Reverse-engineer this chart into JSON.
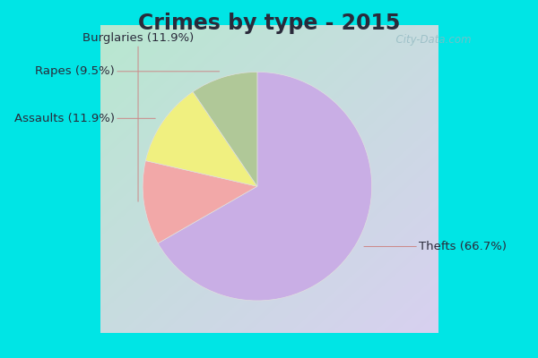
{
  "title": "Crimes by type - 2015",
  "slices": [
    {
      "label": "Thefts (66.7%)",
      "value": 66.7,
      "color": "#c9aee5"
    },
    {
      "label": "Burglaries (11.9%)",
      "value": 11.9,
      "color": "#f2a8a8"
    },
    {
      "label": "Assaults (11.9%)",
      "value": 11.9,
      "color": "#f0f080"
    },
    {
      "label": "Rapes (9.5%)",
      "value": 9.5,
      "color": "#b0c898"
    }
  ],
  "background_top_color": "#00e5e5",
  "background_inner_tl": "#b8e8d0",
  "background_inner_br": "#d8d0f0",
  "title_fontsize": 17,
  "label_fontsize": 9.5,
  "watermark": "  City-Data.com",
  "title_color": "#2a2a3a",
  "label_color": "#2a2a3a"
}
